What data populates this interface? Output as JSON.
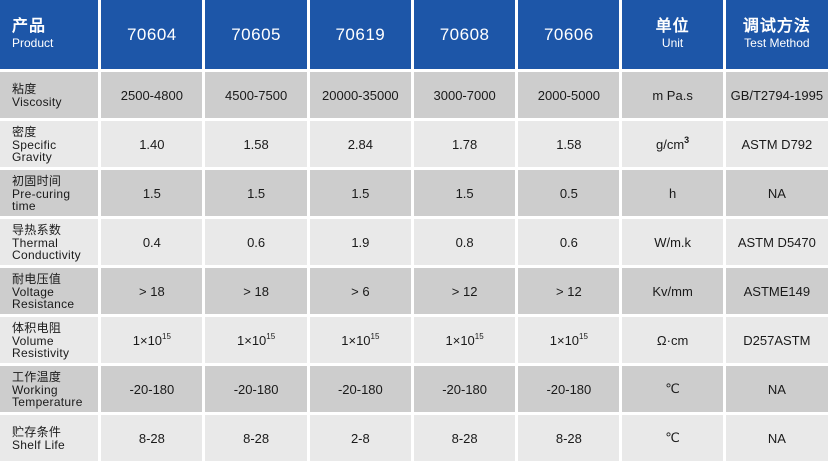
{
  "header": {
    "product_zh": "产品",
    "product_en": "Product",
    "products": [
      "70604",
      "70605",
      "70619",
      "70608",
      "70606"
    ],
    "unit_zh": "单位",
    "unit_en": "Unit",
    "method_zh": "调试方法",
    "method_en": "Test Method"
  },
  "rows": [
    {
      "zh": "粘度",
      "en1": "Viscosity",
      "en2": "",
      "values": [
        "2500-4800",
        "4500-7500",
        "20000-35000",
        "3000-7000",
        "2000-5000"
      ],
      "unit": "m Pa.s",
      "unit_sup": "",
      "method": "GB/T2794-1995"
    },
    {
      "zh": "密度",
      "en1": "Specific",
      "en2": "Gravity",
      "values": [
        "1.40",
        "1.58",
        "2.84",
        "1.78",
        "1.58"
      ],
      "unit": "g/cm",
      "unit_sup": "3",
      "method": "ASTM D792"
    },
    {
      "zh": "初固时间",
      "en1": "Pre-curing",
      "en2": "time",
      "values": [
        "1.5",
        "1.5",
        "1.5",
        "1.5",
        "0.5"
      ],
      "unit": "h",
      "unit_sup": "",
      "method": "NA"
    },
    {
      "zh": "导热系数",
      "en1": "Thermal",
      "en2": "Conductivity",
      "values": [
        "0.4",
        "0.6",
        "1.9",
        "0.8",
        "0.6"
      ],
      "unit": "W/m.k",
      "unit_sup": "",
      "method": "ASTM D5470"
    },
    {
      "zh": "耐电压值",
      "en1": "Voltage",
      "en2": "Resistance",
      "values": [
        "> 18",
        "> 18",
        "> 6",
        "> 12",
        "> 12"
      ],
      "unit": "Kv/mm",
      "unit_sup": "",
      "method": "ASTME149"
    },
    {
      "zh": "体积电阻",
      "en1": "Volume",
      "en2": "Resistivity",
      "values_base": "1×10",
      "values_exp": "15",
      "unit": "Ω·cm",
      "unit_sup": "",
      "method": "D257ASTM"
    },
    {
      "zh": "工作温度",
      "en1": "Working",
      "en2": "Temperature",
      "values": [
        "-20-180",
        "-20-180",
        "-20-180",
        "-20-180",
        "-20-180"
      ],
      "unit": "℃",
      "unit_sup": "",
      "method": "NA"
    },
    {
      "zh": "贮存条件",
      "en1": "Shelf Life",
      "en2": "",
      "values": [
        "8-28",
        "8-28",
        "2-8",
        "8-28",
        "8-28"
      ],
      "unit": "℃",
      "unit_sup": "",
      "method": "NA"
    }
  ]
}
